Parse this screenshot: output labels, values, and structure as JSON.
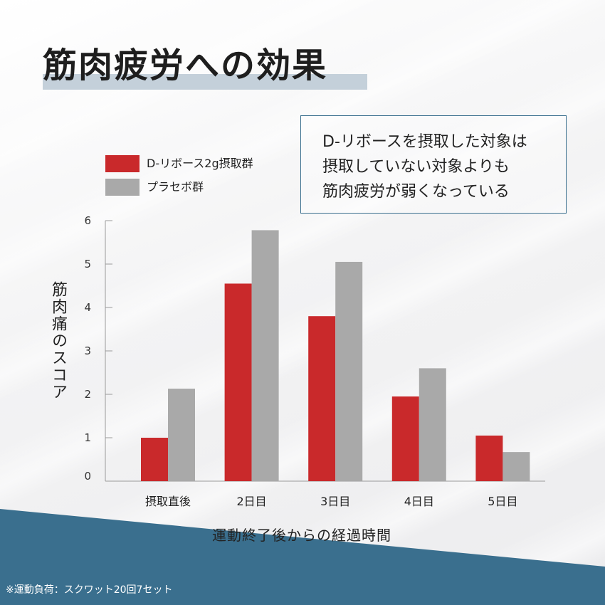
{
  "title": "筋肉疲労への効果",
  "callout": {
    "lines": [
      "D-リボースを摂取した対象は",
      "摂取していない対象よりも",
      "筋肉疲労が弱くなっている"
    ]
  },
  "footnote": "※運動負荷：スクワット20回7セット",
  "colors": {
    "accent": "#c9292b",
    "placebo": "#a9a9a9",
    "band": "#3a6f8e",
    "title_highlight": "#c4d0da"
  },
  "chart_data": {
    "type": "bar",
    "title": "",
    "xlabel": "運動終了後からの経過時間",
    "ylabel": "筋肉痛のスコア",
    "ylim": [
      0,
      6
    ],
    "yticks": [
      "0",
      "1",
      "2",
      "3",
      "4",
      "5",
      "6"
    ],
    "categories": [
      "摂取直後",
      "2日目",
      "3日目",
      "4日目",
      "5日目"
    ],
    "series": [
      {
        "name": "D-リボース2g摂取群",
        "color": "#c9292b",
        "values": [
          1.0,
          4.55,
          3.8,
          1.95,
          1.05
        ]
      },
      {
        "name": "プラセボ群",
        "color": "#a9a9a9",
        "values": [
          2.13,
          5.78,
          5.05,
          2.6,
          0.67
        ]
      }
    ],
    "legend_position": "top-left",
    "grid": false
  }
}
